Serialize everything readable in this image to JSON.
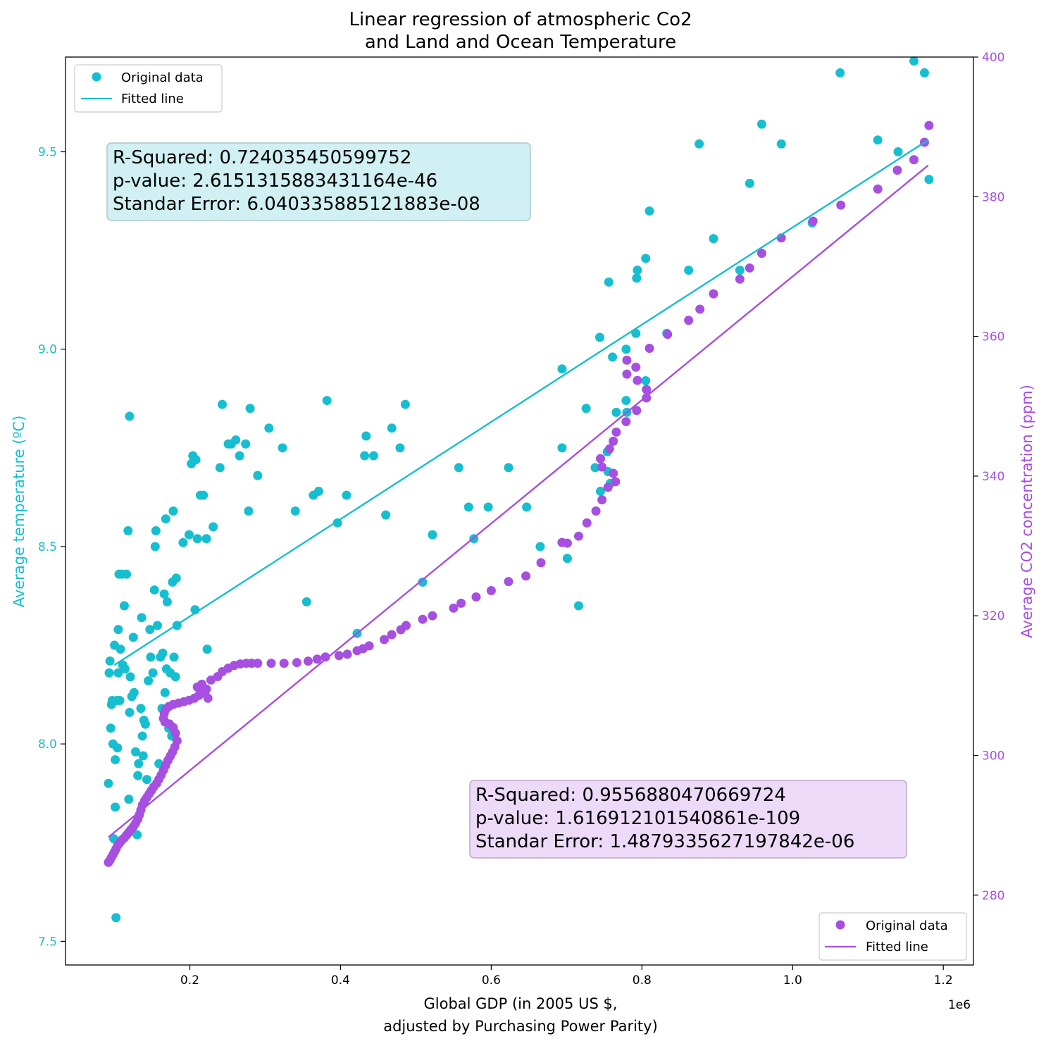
{
  "chart_data": {
    "type": "scatter",
    "title": [
      "Linear regression of atmospheric Co2",
      "and Land and Ocean Temperature"
    ],
    "xlabel": [
      "Global GDP (in 2005 US $,",
      "adjusted by Purchasing Power Parity)"
    ],
    "x_offset_label": "1e6",
    "xlim": [
      0.035,
      1.24
    ],
    "x_ticks": [
      0.2,
      0.4,
      0.6,
      0.8,
      1.0,
      1.2
    ],
    "x_tick_labels": [
      "0.2",
      "0.4",
      "0.6",
      "0.8",
      "1.0",
      "1.2"
    ],
    "axes_left": {
      "ylabel": "Average temperature (ºC)",
      "ylim": [
        7.44,
        9.74
      ],
      "ticks": [
        7.5,
        8.0,
        8.5,
        9.0,
        9.5
      ],
      "tick_labels": [
        "7.5",
        "8.0",
        "8.5",
        "9.0",
        "9.5"
      ],
      "color": "#17becf"
    },
    "axes_right": {
      "ylabel": "Average CO2 concentration (ppm)",
      "ylim": [
        270,
        400
      ],
      "ticks": [
        280,
        300,
        320,
        340,
        360,
        380,
        400
      ],
      "tick_labels": [
        "280",
        "300",
        "320",
        "340",
        "360",
        "380",
        "400"
      ],
      "color": "#a64fe0"
    },
    "series": [
      {
        "axis": "left",
        "color": "#17becf",
        "points": [
          [
            0.092,
            7.9
          ],
          [
            0.093,
            8.18
          ],
          [
            0.094,
            8.21
          ],
          [
            0.095,
            8.04
          ],
          [
            0.096,
            8.1
          ],
          [
            0.097,
            8.11
          ],
          [
            0.098,
            8.0
          ],
          [
            0.099,
            7.76
          ],
          [
            0.1,
            8.25
          ],
          [
            0.101,
            7.96
          ],
          [
            0.101,
            7.84
          ],
          [
            0.102,
            7.56
          ],
          [
            0.103,
            8.11
          ],
          [
            0.104,
            7.99
          ],
          [
            0.105,
            8.29
          ],
          [
            0.105,
            8.18
          ],
          [
            0.106,
            8.43
          ],
          [
            0.107,
            8.11
          ],
          [
            0.108,
            8.24
          ],
          [
            0.11,
            8.43
          ],
          [
            0.111,
            8.2
          ],
          [
            0.113,
            8.35
          ],
          [
            0.114,
            8.19
          ],
          [
            0.116,
            8.43
          ],
          [
            0.118,
            8.54
          ],
          [
            0.119,
            7.86
          ],
          [
            0.12,
            8.83
          ],
          [
            0.12,
            8.08
          ],
          [
            0.121,
            8.17
          ],
          [
            0.123,
            8.12
          ],
          [
            0.125,
            8.27
          ],
          [
            0.126,
            8.13
          ],
          [
            0.128,
            7.98
          ],
          [
            0.13,
            7.77
          ],
          [
            0.131,
            7.92
          ],
          [
            0.132,
            7.95
          ],
          [
            0.135,
            8.09
          ],
          [
            0.136,
            8.32
          ],
          [
            0.137,
            8.02
          ],
          [
            0.138,
            7.97
          ],
          [
            0.139,
            8.06
          ],
          [
            0.141,
            8.05
          ],
          [
            0.143,
            7.91
          ],
          [
            0.145,
            8.16
          ],
          [
            0.147,
            8.29
          ],
          [
            0.148,
            8.22
          ],
          [
            0.151,
            8.18
          ],
          [
            0.153,
            8.39
          ],
          [
            0.154,
            8.5
          ],
          [
            0.155,
            8.54
          ],
          [
            0.157,
            8.3
          ],
          [
            0.159,
            7.95
          ],
          [
            0.161,
            8.22
          ],
          [
            0.163,
            8.09
          ],
          [
            0.164,
            8.23
          ],
          [
            0.166,
            8.38
          ],
          [
            0.167,
            8.13
          ],
          [
            0.168,
            8.57
          ],
          [
            0.169,
            8.19
          ],
          [
            0.17,
            8.36
          ],
          [
            0.172,
            8.04
          ],
          [
            0.174,
            8.18
          ],
          [
            0.176,
            8.02
          ],
          [
            0.177,
            8.41
          ],
          [
            0.178,
            8.59
          ],
          [
            0.179,
            8.22
          ],
          [
            0.181,
            8.17
          ],
          [
            0.182,
            8.42
          ],
          [
            0.183,
            8.3
          ],
          [
            0.191,
            8.51
          ],
          [
            0.199,
            8.53
          ],
          [
            0.202,
            8.71
          ],
          [
            0.204,
            8.73
          ],
          [
            0.207,
            8.34
          ],
          [
            0.208,
            8.72
          ],
          [
            0.21,
            8.52
          ],
          [
            0.214,
            8.63
          ],
          [
            0.218,
            8.63
          ],
          [
            0.222,
            8.52
          ],
          [
            0.223,
            8.24
          ],
          [
            0.231,
            8.55
          ],
          [
            0.24,
            8.7
          ],
          [
            0.243,
            8.86
          ],
          [
            0.251,
            8.76
          ],
          [
            0.255,
            8.76
          ],
          [
            0.261,
            8.77
          ],
          [
            0.266,
            8.73
          ],
          [
            0.274,
            8.76
          ],
          [
            0.278,
            8.59
          ],
          [
            0.28,
            8.85
          ],
          [
            0.29,
            8.68
          ],
          [
            0.305,
            8.8
          ],
          [
            0.323,
            8.75
          ],
          [
            0.34,
            8.59
          ],
          [
            0.355,
            8.36
          ],
          [
            0.364,
            8.63
          ],
          [
            0.371,
            8.64
          ],
          [
            0.382,
            8.87
          ],
          [
            0.396,
            8.56
          ],
          [
            0.408,
            8.63
          ],
          [
            0.422,
            8.28
          ],
          [
            0.432,
            8.73
          ],
          [
            0.434,
            8.78
          ],
          [
            0.444,
            8.73
          ],
          [
            0.46,
            8.58
          ],
          [
            0.468,
            8.8
          ],
          [
            0.479,
            8.75
          ],
          [
            0.486,
            8.86
          ],
          [
            0.509,
            8.41
          ],
          [
            0.522,
            8.53
          ],
          [
            0.557,
            8.7
          ],
          [
            0.57,
            8.6
          ],
          [
            0.577,
            8.52
          ],
          [
            0.596,
            8.6
          ],
          [
            0.623,
            8.7
          ],
          [
            0.647,
            8.6
          ],
          [
            0.665,
            8.5
          ],
          [
            0.694,
            8.95
          ],
          [
            0.694,
            8.75
          ],
          [
            0.701,
            8.47
          ],
          [
            0.716,
            8.35
          ],
          [
            0.726,
            8.85
          ],
          [
            0.738,
            8.7
          ],
          [
            0.744,
            9.03
          ],
          [
            0.745,
            8.64
          ],
          [
            0.754,
            8.74
          ],
          [
            0.755,
            8.69
          ],
          [
            0.756,
            9.17
          ],
          [
            0.758,
            8.66
          ],
          [
            0.761,
            8.98
          ],
          [
            0.766,
            8.84
          ],
          [
            0.779,
            9.0
          ],
          [
            0.779,
            8.87
          ],
          [
            0.78,
            8.84
          ],
          [
            0.792,
            9.04
          ],
          [
            0.793,
            9.18
          ],
          [
            0.794,
            9.2
          ],
          [
            0.805,
            9.23
          ],
          [
            0.805,
            8.92
          ],
          [
            0.81,
            9.35
          ],
          [
            0.833,
            9.04
          ],
          [
            0.862,
            9.2
          ],
          [
            0.876,
            9.52
          ],
          [
            0.895,
            9.28
          ],
          [
            0.93,
            9.2
          ],
          [
            0.943,
            9.42
          ],
          [
            0.959,
            9.57
          ],
          [
            0.985,
            9.52
          ],
          [
            1.026,
            9.32
          ],
          [
            1.063,
            9.7
          ],
          [
            1.113,
            9.53
          ],
          [
            1.14,
            9.5
          ],
          [
            1.161,
            9.73
          ],
          [
            1.175,
            9.7
          ],
          [
            1.181,
            9.43
          ]
        ],
        "fit": {
          "x": [
            0.1,
            1.18
          ],
          "y": [
            8.2,
            9.53
          ]
        },
        "stats": {
          "r_squared": "R-Squared: 0.724035450599752",
          "p_value": "p-value: 2.6151315883431164e-46",
          "std_err": "Standar Error: 6.040335885121883e-08"
        }
      },
      {
        "axis": "right",
        "color": "#a64fe0",
        "points": [
          [
            0.092,
            284.7
          ],
          [
            0.094,
            285.0
          ],
          [
            0.096,
            285.4
          ],
          [
            0.098,
            285.8
          ],
          [
            0.1,
            286.2
          ],
          [
            0.102,
            286.6
          ],
          [
            0.104,
            287.1
          ],
          [
            0.107,
            287.5
          ],
          [
            0.11,
            287.9
          ],
          [
            0.113,
            288.2
          ],
          [
            0.116,
            288.6
          ],
          [
            0.119,
            289.0
          ],
          [
            0.122,
            289.4
          ],
          [
            0.125,
            289.8
          ],
          [
            0.128,
            290.3
          ],
          [
            0.131,
            290.9
          ],
          [
            0.133,
            291.5
          ],
          [
            0.135,
            292.2
          ],
          [
            0.137,
            292.9
          ],
          [
            0.14,
            293.5
          ],
          [
            0.143,
            294.0
          ],
          [
            0.146,
            294.5
          ],
          [
            0.149,
            295.0
          ],
          [
            0.152,
            295.5
          ],
          [
            0.156,
            296.0
          ],
          [
            0.159,
            296.6
          ],
          [
            0.162,
            297.2
          ],
          [
            0.165,
            297.9
          ],
          [
            0.168,
            298.6
          ],
          [
            0.171,
            299.3
          ],
          [
            0.174,
            299.9
          ],
          [
            0.177,
            300.5
          ],
          [
            0.18,
            301.2
          ],
          [
            0.183,
            302.1
          ],
          [
            0.181,
            303.2
          ],
          [
            0.178,
            304.0
          ],
          [
            0.173,
            304.5
          ],
          [
            0.167,
            304.8
          ],
          [
            0.165,
            305.3
          ],
          [
            0.166,
            306.0
          ],
          [
            0.168,
            306.6
          ],
          [
            0.172,
            307.0
          ],
          [
            0.178,
            307.3
          ],
          [
            0.185,
            307.5
          ],
          [
            0.192,
            307.7
          ],
          [
            0.199,
            307.9
          ],
          [
            0.206,
            308.2
          ],
          [
            0.212,
            308.6
          ],
          [
            0.218,
            309.0
          ],
          [
            0.222,
            309.5
          ],
          [
            0.224,
            308.2
          ],
          [
            0.22,
            308.9
          ],
          [
            0.214,
            309.4
          ],
          [
            0.21,
            309.8
          ],
          [
            0.216,
            310.2
          ],
          [
            0.228,
            310.8
          ],
          [
            0.237,
            311.3
          ],
          [
            0.243,
            312.0
          ],
          [
            0.251,
            312.5
          ],
          [
            0.259,
            312.9
          ],
          [
            0.267,
            313.1
          ],
          [
            0.275,
            313.2
          ],
          [
            0.282,
            313.2
          ],
          [
            0.29,
            313.2
          ],
          [
            0.308,
            313.2
          ],
          [
            0.325,
            313.2
          ],
          [
            0.342,
            313.3
          ],
          [
            0.357,
            313.5
          ],
          [
            0.369,
            313.8
          ],
          [
            0.38,
            314.1
          ],
          [
            0.398,
            314.3
          ],
          [
            0.409,
            314.5
          ],
          [
            0.422,
            315.0
          ],
          [
            0.43,
            315.3
          ],
          [
            0.438,
            315.7
          ],
          [
            0.458,
            316.6
          ],
          [
            0.468,
            317.3
          ],
          [
            0.48,
            318.0
          ],
          [
            0.487,
            318.6
          ],
          [
            0.509,
            319.5
          ],
          [
            0.522,
            320.0
          ],
          [
            0.55,
            321.1
          ],
          [
            0.56,
            321.8
          ],
          [
            0.58,
            322.7
          ],
          [
            0.6,
            323.6
          ],
          [
            0.623,
            324.9
          ],
          [
            0.646,
            325.7
          ],
          [
            0.666,
            327.6
          ],
          [
            0.694,
            330.5
          ],
          [
            0.701,
            330.4
          ],
          [
            0.716,
            331.4
          ],
          [
            0.727,
            333.3
          ],
          [
            0.739,
            335.0
          ],
          [
            0.747,
            336.6
          ],
          [
            0.755,
            338.4
          ],
          [
            0.765,
            339.2
          ],
          [
            0.762,
            340.4
          ],
          [
            0.747,
            341.3
          ],
          [
            0.745,
            342.5
          ],
          [
            0.757,
            343.9
          ],
          [
            0.762,
            345.0
          ],
          [
            0.766,
            346.3
          ],
          [
            0.779,
            347.8
          ],
          [
            0.793,
            349.4
          ],
          [
            0.806,
            351.2
          ],
          [
            0.806,
            352.4
          ],
          [
            0.794,
            353.7
          ],
          [
            0.78,
            354.6
          ],
          [
            0.792,
            355.6
          ],
          [
            0.78,
            356.6
          ],
          [
            0.81,
            358.3
          ],
          [
            0.834,
            360.3
          ],
          [
            0.862,
            362.3
          ],
          [
            0.877,
            363.9
          ],
          [
            0.895,
            366.1
          ],
          [
            0.93,
            368.2
          ],
          [
            0.943,
            369.8
          ],
          [
            0.959,
            371.9
          ],
          [
            0.985,
            374.1
          ],
          [
            1.027,
            376.5
          ],
          [
            1.064,
            378.8
          ],
          [
            1.113,
            381.1
          ],
          [
            1.139,
            383.8
          ],
          [
            1.161,
            385.3
          ],
          [
            1.175,
            387.8
          ],
          [
            1.181,
            390.2
          ]
        ],
        "fit": {
          "x": [
            0.092,
            1.18
          ],
          "y": [
            288.3,
            384.5
          ]
        },
        "stats": {
          "r_squared": "R-Squared: 0.9556880470669724",
          "p_value": "p-value: 1.616912101540861e-109",
          "std_err": "Standar Error: 1.4879335627197842e-06"
        }
      }
    ],
    "legends": [
      {
        "placement": "upper-left",
        "markers": "Original data",
        "line": "Fitted line",
        "color": "#17becf"
      },
      {
        "placement": "lower-right",
        "markers": "Original data",
        "line": "Fitted line",
        "color": "#a64fe0"
      }
    ]
  }
}
